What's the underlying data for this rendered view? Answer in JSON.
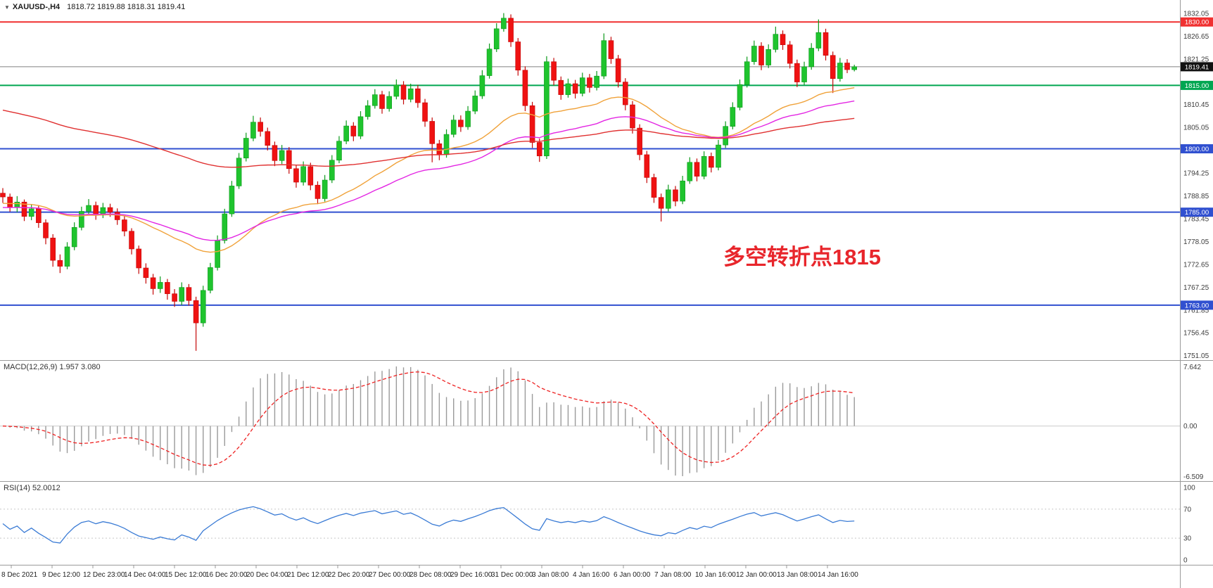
{
  "titlebar": {
    "symbol": "XAUUSD-,H4",
    "ohlc": "1818.72 1819.88 1818.31 1819.41"
  },
  "annotation": {
    "text": "多空转折点1815",
    "color": "#e8262c"
  },
  "colors": {
    "up": "#1fc42e",
    "up_wick": "#0d9a1c",
    "down": "#ef1212",
    "down_wick": "#c40808",
    "ma_fast": "#f0a23a",
    "ma_mid": "#e326e3",
    "ma_slow": "#e03030",
    "bid_line": "#808080",
    "macd_hist": "#9a9a9a",
    "macd_signal": "#ee2222",
    "rsi_line": "#3a7bd5",
    "axis_text": "#3c3c3c",
    "level_red": "#f03030",
    "level_green": "#00a651",
    "level_blue": "#3050d0",
    "badge_bid": "#111111"
  },
  "price_axis": {
    "labels": [
      "1832.05",
      "1826.65",
      "1821.25",
      "1810.45",
      "1805.05",
      "1794.25",
      "1788.85",
      "1783.45",
      "1778.05",
      "1772.65",
      "1767.25",
      "1761.85",
      "1756.45",
      "1751.05"
    ],
    "badges": [
      {
        "label": "1830.00",
        "price": 1830.0,
        "color": "#f03030"
      },
      {
        "label": "1819.41",
        "price": 1819.41,
        "color": "#111111"
      },
      {
        "label": "1815.00",
        "price": 1815.0,
        "color": "#00a651"
      },
      {
        "label": "1800.00",
        "price": 1800.0,
        "color": "#3050d0"
      },
      {
        "label": "1785.00",
        "price": 1785.0,
        "color": "#3050d0"
      },
      {
        "label": "1763.00",
        "price": 1763.0,
        "color": "#3050d0"
      }
    ]
  },
  "levels": [
    {
      "price": 1830.0,
      "color": "#f03030",
      "width": 2
    },
    {
      "price": 1815.0,
      "color": "#00a651",
      "width": 2
    },
    {
      "price": 1800.0,
      "color": "#3050d0",
      "width": 2
    },
    {
      "price": 1785.0,
      "color": "#3050d0",
      "width": 2
    },
    {
      "price": 1763.0,
      "color": "#3050d0",
      "width": 2
    }
  ],
  "bid": {
    "price": 1819.41,
    "label": "1819.41"
  },
  "chart_data": {
    "type": "candlestick",
    "symbol": "XAUUSD",
    "timeframe": "H4",
    "title": "XAUUSD-,H4  1818.72 1819.88 1818.31 1819.41",
    "price_range": [
      1750.0,
      1835.2
    ],
    "x_labels": [
      "8 Dec 2021",
      "9 Dec 12:00",
      "12 Dec 23:00",
      "14 Dec 04:00",
      "15 Dec 12:00",
      "16 Dec 20:00",
      "20 Dec 04:00",
      "21 Dec 12:00",
      "22 Dec 20:00",
      "27 Dec 00:00",
      "28 Dec 08:00",
      "29 Dec 16:00",
      "31 Dec 00:00",
      "3 Jan 08:00",
      "4 Jan 16:00",
      "6 Jan 00:00",
      "7 Jan 08:00",
      "10 Jan 16:00",
      "12 Jan 00:00",
      "13 Jan 08:00",
      "14 Jan 16:00"
    ],
    "last_candle": {
      "o": 1818.72,
      "h": 1819.88,
      "l": 1818.31,
      "c": 1819.41
    },
    "candles": [
      [
        1789.5,
        1790.7,
        1787.2,
        1788.6
      ],
      [
        1788.6,
        1789.4,
        1785.1,
        1786.2
      ],
      [
        1786.2,
        1788.8,
        1785.0,
        1787.4
      ],
      [
        1787.4,
        1788.0,
        1782.9,
        1784.0
      ],
      [
        1784.0,
        1786.9,
        1783.1,
        1785.8
      ],
      [
        1785.8,
        1786.6,
        1781.3,
        1782.5
      ],
      [
        1782.5,
        1783.3,
        1777.4,
        1778.9
      ],
      [
        1778.9,
        1779.8,
        1772.1,
        1773.6
      ],
      [
        1773.6,
        1775.0,
        1770.6,
        1772.2
      ],
      [
        1772.2,
        1777.9,
        1771.5,
        1776.8
      ],
      [
        1776.8,
        1782.6,
        1776.0,
        1781.4
      ],
      [
        1781.4,
        1786.3,
        1780.7,
        1785.2
      ],
      [
        1785.2,
        1788.1,
        1784.4,
        1786.6
      ],
      [
        1786.6,
        1787.5,
        1783.2,
        1784.3
      ],
      [
        1784.3,
        1787.2,
        1783.6,
        1786.1
      ],
      [
        1786.1,
        1787.0,
        1783.9,
        1785.0
      ],
      [
        1785.0,
        1785.9,
        1782.0,
        1783.2
      ],
      [
        1783.2,
        1784.1,
        1779.3,
        1780.5
      ],
      [
        1780.5,
        1781.2,
        1775.0,
        1776.3
      ],
      [
        1776.3,
        1777.1,
        1770.4,
        1771.8
      ],
      [
        1771.8,
        1772.9,
        1768.1,
        1769.5
      ],
      [
        1769.5,
        1770.4,
        1765.5,
        1766.9
      ],
      [
        1766.9,
        1769.8,
        1765.9,
        1768.4
      ],
      [
        1768.4,
        1769.2,
        1764.3,
        1765.7
      ],
      [
        1765.7,
        1766.8,
        1762.6,
        1763.9
      ],
      [
        1763.9,
        1768.4,
        1763.0,
        1767.2
      ],
      [
        1767.2,
        1768.0,
        1762.9,
        1764.1
      ],
      [
        1764.1,
        1765.0,
        1752.2,
        1758.8
      ],
      [
        1758.8,
        1767.6,
        1757.9,
        1766.5
      ],
      [
        1766.5,
        1773.0,
        1765.8,
        1771.9
      ],
      [
        1771.9,
        1779.5,
        1771.2,
        1778.3
      ],
      [
        1778.3,
        1785.8,
        1777.6,
        1784.6
      ],
      [
        1784.6,
        1792.4,
        1783.9,
        1791.2
      ],
      [
        1791.2,
        1799.0,
        1790.5,
        1797.8
      ],
      [
        1797.8,
        1803.8,
        1797.0,
        1802.5
      ],
      [
        1802.5,
        1807.8,
        1801.8,
        1806.3
      ],
      [
        1806.3,
        1807.4,
        1802.9,
        1804.1
      ],
      [
        1804.1,
        1805.0,
        1799.6,
        1800.8
      ],
      [
        1800.8,
        1801.7,
        1795.9,
        1797.2
      ],
      [
        1797.2,
        1800.9,
        1796.4,
        1799.6
      ],
      [
        1799.6,
        1800.4,
        1794.1,
        1795.3
      ],
      [
        1795.3,
        1796.2,
        1790.8,
        1792.1
      ],
      [
        1792.1,
        1797.0,
        1791.3,
        1795.8
      ],
      [
        1795.8,
        1796.7,
        1790.2,
        1791.4
      ],
      [
        1791.4,
        1792.3,
        1786.9,
        1788.2
      ],
      [
        1788.2,
        1793.8,
        1787.5,
        1792.6
      ],
      [
        1792.6,
        1798.5,
        1791.9,
        1797.3
      ],
      [
        1797.3,
        1803.0,
        1796.6,
        1801.8
      ],
      [
        1801.8,
        1806.7,
        1801.1,
        1805.4
      ],
      [
        1805.4,
        1806.3,
        1801.8,
        1803.0
      ],
      [
        1803.0,
        1808.9,
        1802.3,
        1807.6
      ],
      [
        1807.6,
        1811.5,
        1806.9,
        1810.2
      ],
      [
        1810.2,
        1814.1,
        1809.5,
        1812.8
      ],
      [
        1812.8,
        1813.7,
        1808.3,
        1809.5
      ],
      [
        1809.5,
        1813.6,
        1808.8,
        1812.4
      ],
      [
        1812.4,
        1816.4,
        1811.7,
        1815.1
      ],
      [
        1815.1,
        1816.0,
        1810.5,
        1811.7
      ],
      [
        1811.7,
        1815.4,
        1811.0,
        1814.2
      ],
      [
        1814.2,
        1815.1,
        1809.7,
        1810.9
      ],
      [
        1810.9,
        1811.8,
        1805.2,
        1806.5
      ],
      [
        1806.5,
        1807.4,
        1796.8,
        1801.2
      ],
      [
        1801.2,
        1802.1,
        1797.3,
        1798.6
      ],
      [
        1798.6,
        1804.6,
        1797.9,
        1803.4
      ],
      [
        1803.4,
        1808.0,
        1802.7,
        1806.8
      ],
      [
        1806.8,
        1807.9,
        1804.0,
        1805.2
      ],
      [
        1805.2,
        1810.1,
        1804.5,
        1808.9
      ],
      [
        1808.9,
        1813.8,
        1808.2,
        1812.5
      ],
      [
        1812.5,
        1818.6,
        1811.8,
        1817.3
      ],
      [
        1817.3,
        1824.9,
        1816.6,
        1823.6
      ],
      [
        1823.6,
        1829.7,
        1822.9,
        1828.4
      ],
      [
        1828.4,
        1832.1,
        1827.7,
        1830.9
      ],
      [
        1830.9,
        1831.8,
        1824.1,
        1825.3
      ],
      [
        1825.3,
        1826.2,
        1817.3,
        1818.6
      ],
      [
        1818.6,
        1819.5,
        1808.9,
        1810.2
      ],
      [
        1810.2,
        1811.1,
        1800.2,
        1801.5
      ],
      [
        1801.5,
        1802.4,
        1796.9,
        1798.3
      ],
      [
        1798.3,
        1821.9,
        1797.6,
        1820.6
      ],
      [
        1820.6,
        1821.5,
        1815.0,
        1816.2
      ],
      [
        1816.2,
        1817.1,
        1811.6,
        1812.8
      ],
      [
        1812.8,
        1816.6,
        1812.1,
        1815.4
      ],
      [
        1815.4,
        1816.3,
        1811.9,
        1813.1
      ],
      [
        1813.1,
        1818.0,
        1812.4,
        1816.8
      ],
      [
        1816.8,
        1817.7,
        1813.3,
        1814.5
      ],
      [
        1814.5,
        1818.4,
        1813.8,
        1817.2
      ],
      [
        1817.2,
        1827.3,
        1816.5,
        1825.6
      ],
      [
        1825.6,
        1826.5,
        1820.1,
        1821.3
      ],
      [
        1821.3,
        1822.2,
        1814.5,
        1815.8
      ],
      [
        1815.8,
        1816.7,
        1809.1,
        1810.4
      ],
      [
        1810.4,
        1811.3,
        1803.6,
        1804.9
      ],
      [
        1804.9,
        1805.8,
        1797.3,
        1798.6
      ],
      [
        1798.6,
        1799.5,
        1791.9,
        1793.2
      ],
      [
        1793.2,
        1794.1,
        1787.2,
        1788.5
      ],
      [
        1788.5,
        1789.4,
        1782.8,
        1785.9
      ],
      [
        1785.9,
        1791.5,
        1785.2,
        1790.3
      ],
      [
        1790.3,
        1791.2,
        1786.4,
        1787.6
      ],
      [
        1787.6,
        1793.6,
        1786.9,
        1792.4
      ],
      [
        1792.4,
        1798.0,
        1791.7,
        1796.8
      ],
      [
        1796.8,
        1797.7,
        1792.3,
        1793.5
      ],
      [
        1793.5,
        1799.4,
        1792.8,
        1798.2
      ],
      [
        1798.2,
        1799.1,
        1794.4,
        1795.6
      ],
      [
        1795.6,
        1802.1,
        1794.9,
        1800.9
      ],
      [
        1800.9,
        1806.5,
        1800.2,
        1805.3
      ],
      [
        1805.3,
        1811.0,
        1804.6,
        1809.8
      ],
      [
        1809.8,
        1816.4,
        1809.1,
        1815.2
      ],
      [
        1815.2,
        1821.8,
        1814.5,
        1820.6
      ],
      [
        1820.6,
        1825.6,
        1819.9,
        1824.3
      ],
      [
        1824.3,
        1825.2,
        1818.6,
        1819.8
      ],
      [
        1819.8,
        1824.7,
        1819.1,
        1823.5
      ],
      [
        1823.5,
        1828.9,
        1822.8,
        1827.1
      ],
      [
        1827.1,
        1828.0,
        1823.4,
        1824.6
      ],
      [
        1824.6,
        1825.5,
        1819.0,
        1820.2
      ],
      [
        1820.2,
        1821.1,
        1814.6,
        1815.8
      ],
      [
        1815.8,
        1820.6,
        1815.1,
        1819.4
      ],
      [
        1819.4,
        1825.0,
        1818.7,
        1823.8
      ],
      [
        1823.8,
        1830.6,
        1823.1,
        1827.5
      ],
      [
        1827.5,
        1828.4,
        1820.9,
        1822.1
      ],
      [
        1822.1,
        1823.0,
        1813.2,
        1816.6
      ],
      [
        1816.6,
        1821.5,
        1815.9,
        1820.3
      ],
      [
        1820.3,
        1821.2,
        1817.9,
        1818.72
      ],
      [
        1818.72,
        1819.88,
        1818.31,
        1819.41
      ]
    ],
    "moving_averages": [
      {
        "name": "fast",
        "period": 34,
        "init": 1787.0,
        "color": "#f0a23a"
      },
      {
        "name": "mid",
        "period": 55,
        "init": 1786.0,
        "color": "#e326e3"
      },
      {
        "name": "slow",
        "period": 120,
        "init": 1809.5,
        "color": "#e03030"
      }
    ],
    "macd": {
      "label": "MACD(12,26,9) 1.957 3.080",
      "params": [
        12,
        26,
        9
      ],
      "value": 1.957,
      "signal": 3.08,
      "axis_labels": [
        "7.642",
        "0.00",
        "-6.509"
      ],
      "range": [
        -6.509,
        7.642
      ]
    },
    "rsi": {
      "label": "RSI(14) 52.0012",
      "period": 14,
      "value": 52.0012,
      "levels": [
        70,
        30
      ],
      "axis_labels": [
        "100",
        "70",
        "30",
        "0"
      ]
    }
  }
}
